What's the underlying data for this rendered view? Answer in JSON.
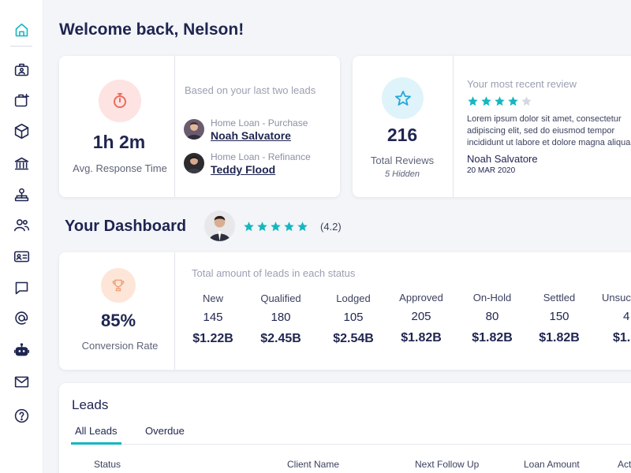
{
  "page": {
    "title": "Welcome back, Nelson!"
  },
  "sidebar": {
    "items": [
      {
        "icon": "home-icon",
        "active": true
      },
      {
        "icon": "briefcase-user-icon"
      },
      {
        "icon": "briefcase-plus-icon"
      },
      {
        "icon": "box-icon"
      },
      {
        "icon": "bank-icon"
      },
      {
        "icon": "user-network-icon"
      },
      {
        "icon": "users-icon"
      },
      {
        "icon": "id-card-icon"
      },
      {
        "icon": "chat-icon"
      },
      {
        "icon": "at-icon"
      },
      {
        "icon": "robot-icon"
      },
      {
        "icon": "mail-icon"
      },
      {
        "icon": "help-icon"
      }
    ]
  },
  "response_card": {
    "value": "1h 2m",
    "label": "Avg. Response Time",
    "leads_caption": "Based on your last two leads",
    "leads": [
      {
        "type": "Home Loan - Purchase",
        "name": "Noah Salvatore"
      },
      {
        "type": "Home Loan - Refinance",
        "name": "Teddy Flood"
      }
    ]
  },
  "reviews_card": {
    "count": "216",
    "label": "Total Reviews",
    "hidden": "5 Hidden",
    "recent_caption": "Your most recent review",
    "rating_filled": 4,
    "rating_total": 5,
    "text": "Lorem ipsum dolor sit amet, consectetur adipiscing elit, sed do eiusmod tempor incididunt ut labore et dolore magna aliqua. Ut enim ad minim veniam",
    "author": "Noah Salvatore",
    "date": "20 MAR 2020"
  },
  "dashboard": {
    "title": "Your Dashboard",
    "rating": "(4.2)",
    "stars_filled": 5
  },
  "conversion_card": {
    "value": "85%",
    "label": "Conversion Rate",
    "caption": "Total amount of leads in each status",
    "statuses": [
      {
        "name": "New",
        "count": "145",
        "amount": "$1.22B"
      },
      {
        "name": "Qualified",
        "count": "180",
        "amount": "$2.45B"
      },
      {
        "name": "Lodged",
        "count": "105",
        "amount": "$2.54B"
      },
      {
        "name": "Approved",
        "count": "205",
        "amount": "$1.82B"
      },
      {
        "name": "On-Hold",
        "count": "80",
        "amount": "$1.82B"
      },
      {
        "name": "Settled",
        "count": "150",
        "amount": "$1.82B"
      },
      {
        "name": "Unsuc",
        "count": "4",
        "amount": "$1."
      }
    ]
  },
  "leads_panel": {
    "title": "Leads",
    "tabs": [
      "All Leads",
      "Overdue"
    ],
    "columns": [
      "Status",
      "Client Name",
      "Next Follow Up",
      "Loan Amount",
      "Act"
    ]
  },
  "colors": {
    "accent": "#14b7c0",
    "text": "#1f2550",
    "star_empty": "#d5d8e0",
    "timer_bg": "#fde3e1",
    "timer_icon": "#ee6b5e",
    "star_bg": "#dff3fb",
    "trophy_bg": "#fde6d8",
    "trophy_icon": "#f0a37a"
  }
}
